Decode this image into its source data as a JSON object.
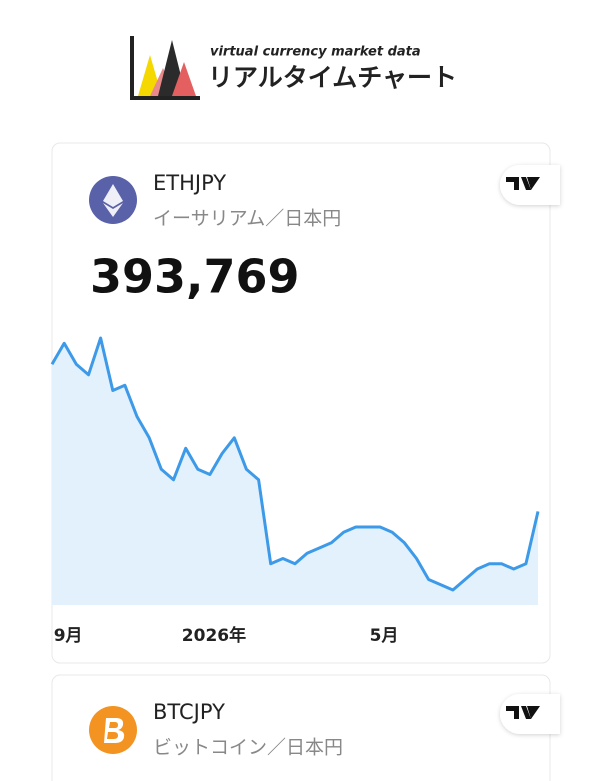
{
  "header": {
    "subtitle": "virtual currency market data",
    "title": "リアルタイムチャート"
  },
  "cards": [
    {
      "symbol": "ETHJPY",
      "name": "イーサリアム／日本円",
      "price": "393,769",
      "chart_data": {
        "type": "line",
        "color": "#3d9ae8",
        "fill": "#e3f1fd",
        "categories": [
          null,
          "9月",
          null,
          null,
          null,
          null,
          null,
          null,
          null,
          null,
          null,
          null,
          null,
          "2026年",
          null,
          null,
          null,
          null,
          null,
          null,
          null,
          null,
          null,
          null,
          null,
          null,
          null,
          "5月",
          null,
          null,
          null,
          null,
          null,
          null,
          null,
          null,
          null,
          null,
          null,
          null,
          null
        ],
        "values": [
          646000,
          682000,
          646000,
          628000,
          691000,
          601000,
          610000,
          556000,
          520000,
          466000,
          448000,
          502000,
          466000,
          457000,
          493000,
          520000,
          466000,
          448000,
          304000,
          313000,
          304000,
          322000,
          331000,
          340000,
          358000,
          367000,
          367000,
          367000,
          358000,
          340000,
          313000,
          277000,
          268000,
          259000,
          277000,
          295000,
          304000,
          304000,
          295000,
          304000,
          393769
        ]
      }
    },
    {
      "symbol": "BTCJPY",
      "name": "ビットコイン／日本円"
    }
  ]
}
